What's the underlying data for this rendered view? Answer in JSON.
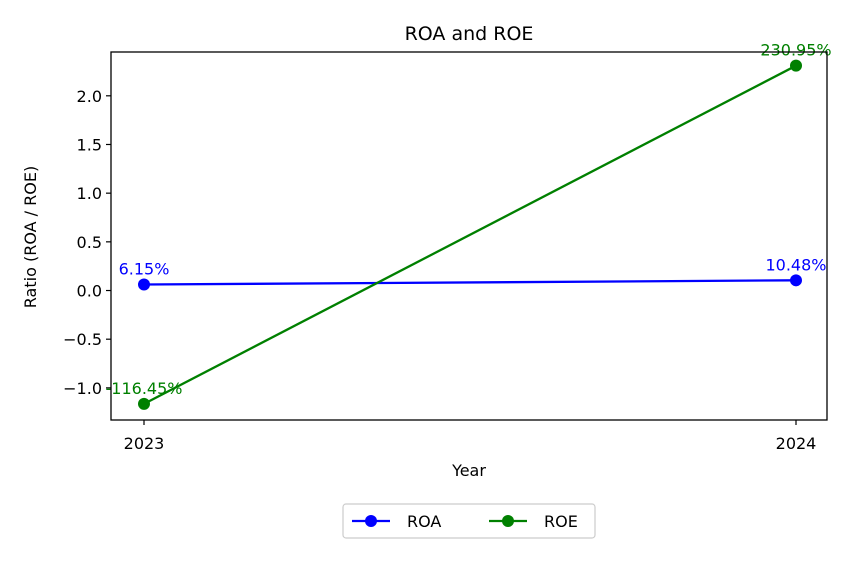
{
  "chart_data": {
    "type": "line",
    "title": "ROA and ROE",
    "xlabel": "Year",
    "ylabel": "Ratio (ROA / ROE)",
    "categories": [
      "2023",
      "2024"
    ],
    "ylim": [
      -1.33,
      2.45
    ],
    "yticks": [
      -1.0,
      -0.5,
      0.0,
      0.5,
      1.0,
      1.5,
      2.0
    ],
    "ytick_labels": [
      "−1.0",
      "−0.5",
      "0.0",
      "0.5",
      "1.0",
      "1.5",
      "2.0"
    ],
    "grid": false,
    "legend": "bottom-center",
    "series": [
      {
        "name": "ROA",
        "color": "#0000ff",
        "values": [
          0.0615,
          0.1048
        ],
        "labels": [
          "6.15%",
          "10.48%"
        ]
      },
      {
        "name": "ROE",
        "color": "#008000",
        "values": [
          -1.1645,
          2.3095
        ],
        "labels": [
          "-116.45%",
          "230.95%"
        ]
      }
    ]
  }
}
